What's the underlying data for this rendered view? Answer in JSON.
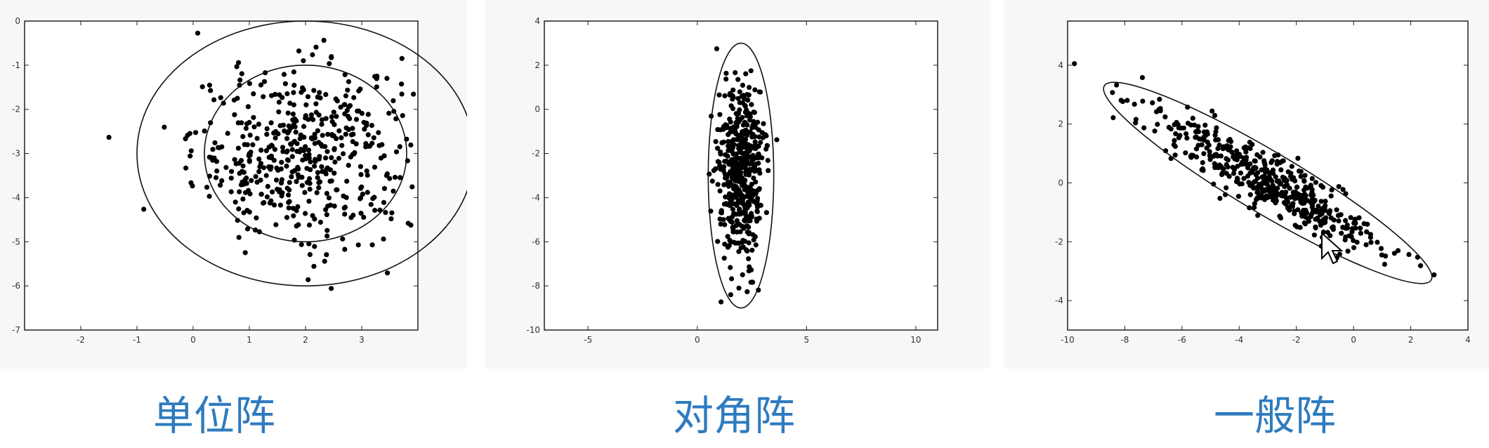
{
  "chart_data": [
    {
      "type": "scatter",
      "title": "单位阵",
      "xlim": [
        -3,
        4
      ],
      "ylim": [
        -7,
        0
      ],
      "xticks": [
        "-2",
        "-1",
        "0",
        "1",
        "2",
        "3"
      ],
      "yticks": [
        "0",
        "-1",
        "-2",
        "-3",
        "-4",
        "-5",
        "-6",
        "-7"
      ],
      "grid": false,
      "center": [
        2,
        -3
      ],
      "ellipses": [
        {
          "rx": 1.8,
          "ry": 2.0,
          "angle": 0
        },
        {
          "rx": 3.0,
          "ry": 3.0,
          "angle": 0
        }
      ],
      "cov": {
        "sx": 1,
        "sy": 1,
        "rho": 0
      },
      "n_points": 500
    },
    {
      "type": "scatter",
      "title": "对角阵",
      "xlim": [
        -7,
        11
      ],
      "ylim": [
        -10,
        4
      ],
      "xticks": [
        "-5",
        "0",
        "5",
        "10"
      ],
      "yticks": [
        "4",
        "2",
        "0",
        "-2",
        "-4",
        "-6",
        "-8",
        "-10"
      ],
      "grid": false,
      "center": [
        2,
        -3
      ],
      "ellipses": [
        {
          "rx": 1.5,
          "ry": 6.0,
          "angle": 0
        }
      ],
      "cov": {
        "sx": 0.5,
        "sy": 2,
        "rho": 0
      },
      "n_points": 500
    },
    {
      "type": "scatter",
      "title": "一般阵",
      "xlim": [
        -10,
        4
      ],
      "ylim": [
        -5,
        5.5
      ],
      "xticks": [
        "-10",
        "-8",
        "-6",
        "-4",
        "-2",
        "0",
        "2",
        "4"
      ],
      "yticks": [
        "4",
        "2",
        "0",
        "-2",
        "-4"
      ],
      "grid": false,
      "center": [
        -3,
        0
      ],
      "ellipses": [
        {
          "rx": 6.6,
          "ry": 1.05,
          "angle": -30
        }
      ],
      "cov": {
        "sx": 2.0,
        "sy": 1.2,
        "rho": -0.9
      },
      "n_points": 500
    }
  ],
  "captions": [
    "单位阵",
    "对角阵",
    "一般阵"
  ]
}
